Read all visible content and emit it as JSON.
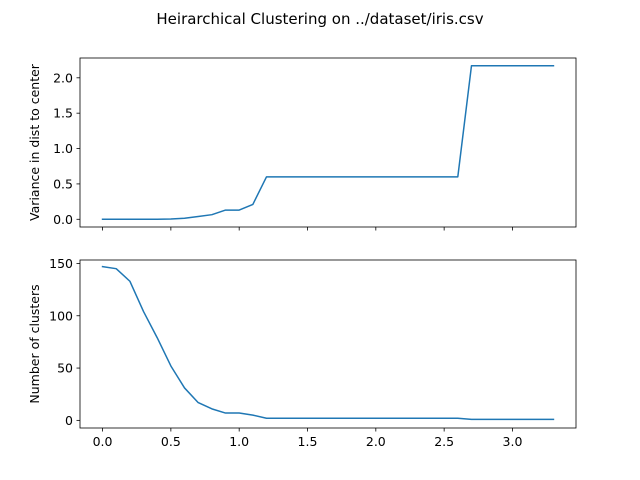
{
  "figure": {
    "title": "Heirarchical Clustering on ../dataset/iris.csv"
  },
  "chart_data": [
    {
      "type": "line",
      "ylabel": "Variance in dist to center",
      "xlabel": "",
      "xlim": [
        -0.165,
        3.465
      ],
      "ylim": [
        -0.109,
        2.28
      ],
      "xticks": [
        0.0,
        0.5,
        1.0,
        1.5,
        2.0,
        2.5,
        3.0
      ],
      "xtick_labels_visible": false,
      "yticks": [
        0.0,
        0.5,
        1.0,
        1.5,
        2.0
      ],
      "ytick_labels": [
        "0.0",
        "0.5",
        "1.0",
        "1.5",
        "2.0"
      ],
      "line_color": "#1f77b4",
      "grid": false,
      "x": [
        0.0,
        0.1,
        0.2,
        0.3,
        0.4,
        0.5,
        0.6,
        0.7,
        0.8,
        0.9,
        1.0,
        1.1,
        1.2,
        1.3,
        1.4,
        1.5,
        1.6,
        1.7,
        1.8,
        1.9,
        2.0,
        2.1,
        2.2,
        2.3,
        2.4,
        2.5,
        2.6,
        2.7,
        2.8,
        2.9,
        3.0,
        3.1,
        3.2,
        3.3
      ],
      "y": [
        0.0,
        0.0,
        0.0,
        0.0,
        0.0,
        0.005,
        0.015,
        0.04,
        0.065,
        0.13,
        0.13,
        0.21,
        0.6,
        0.6,
        0.6,
        0.6,
        0.6,
        0.6,
        0.6,
        0.6,
        0.6,
        0.6,
        0.6,
        0.6,
        0.6,
        0.6,
        0.6,
        2.17,
        2.17,
        2.17,
        2.17,
        2.17,
        2.17,
        2.17
      ]
    },
    {
      "type": "line",
      "ylabel": "Number of clusters",
      "xlabel": "",
      "xlim": [
        -0.165,
        3.465
      ],
      "ylim": [
        -7.3,
        153.3
      ],
      "xticks": [
        0.0,
        0.5,
        1.0,
        1.5,
        2.0,
        2.5,
        3.0
      ],
      "xtick_labels": [
        "0.0",
        "0.5",
        "1.0",
        "1.5",
        "2.0",
        "2.5",
        "3.0"
      ],
      "xtick_labels_visible": true,
      "yticks": [
        0,
        50,
        100,
        150
      ],
      "ytick_labels": [
        "0",
        "50",
        "100",
        "150"
      ],
      "line_color": "#1f77b4",
      "grid": false,
      "x": [
        0.0,
        0.1,
        0.2,
        0.3,
        0.4,
        0.5,
        0.6,
        0.7,
        0.8,
        0.9,
        1.0,
        1.1,
        1.2,
        1.3,
        1.4,
        1.5,
        1.6,
        1.7,
        1.8,
        1.9,
        2.0,
        2.1,
        2.2,
        2.3,
        2.4,
        2.5,
        2.6,
        2.7,
        2.8,
        2.9,
        3.0,
        3.1,
        3.2,
        3.3
      ],
      "y": [
        147,
        145,
        133,
        104,
        79,
        52,
        31,
        17,
        11,
        7,
        7,
        5,
        2,
        2,
        2,
        2,
        2,
        2,
        2,
        2,
        2,
        2,
        2,
        2,
        2,
        2,
        2,
        1,
        1,
        1,
        1,
        1,
        1,
        1
      ]
    }
  ]
}
